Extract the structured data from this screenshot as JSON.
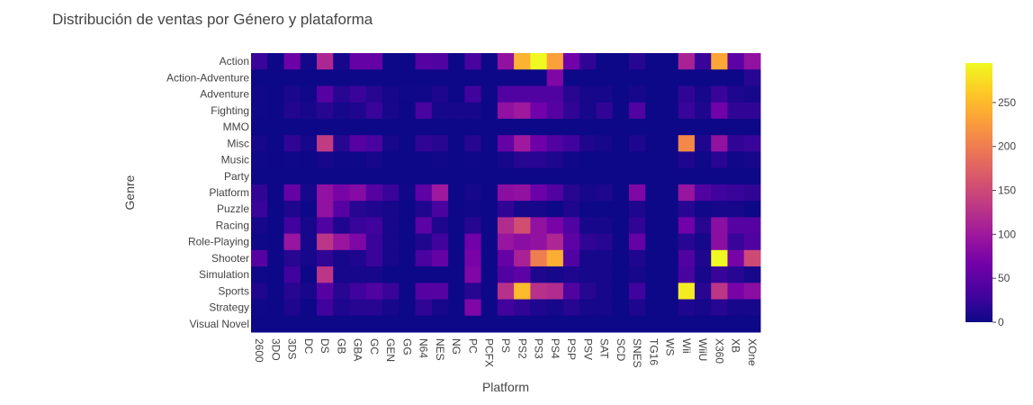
{
  "chart_data": {
    "type": "heatmap",
    "title": "Distribución de ventas por Género y plataforma",
    "xlabel": "Platform",
    "ylabel": "Genre",
    "x": [
      "2600",
      "3DO",
      "3DS",
      "DC",
      "DS",
      "GB",
      "GBA",
      "GC",
      "GEN",
      "GG",
      "N64",
      "NES",
      "NG",
      "PC",
      "PCFX",
      "PS",
      "PS2",
      "PS3",
      "PS4",
      "PSP",
      "PSV",
      "SAT",
      "SCD",
      "SNES",
      "TG16",
      "WS",
      "Wii",
      "WiiU",
      "X360",
      "XB",
      "XOne"
    ],
    "y": [
      "Action",
      "Action-Adventure",
      "Adventure",
      "Fighting",
      "MMO",
      "Misc",
      "Music",
      "Party",
      "Platform",
      "Puzzle",
      "Racing",
      "Role-Playing",
      "Shooter",
      "Simulation",
      "Sports",
      "Strategy",
      "Visual Novel"
    ],
    "z": [
      [
        25,
        0,
        60,
        3,
        115,
        5,
        55,
        55,
        0,
        0,
        45,
        40,
        0,
        35,
        0,
        90,
        245,
        295,
        230,
        65,
        20,
        0,
        0,
        15,
        0,
        0,
        110,
        25,
        235,
        50,
        90
      ],
      [
        0,
        0,
        0,
        0,
        0,
        0,
        0,
        0,
        0,
        0,
        0,
        0,
        0,
        0,
        0,
        0,
        0,
        0,
        75,
        0,
        0,
        0,
        0,
        0,
        0,
        0,
        0,
        0,
        0,
        0,
        15
      ],
      [
        2,
        0,
        8,
        2,
        45,
        15,
        25,
        15,
        5,
        1,
        2,
        10,
        0,
        30,
        0,
        40,
        40,
        40,
        40,
        15,
        5,
        5,
        0,
        5,
        0,
        0,
        20,
        5,
        25,
        10,
        5
      ],
      [
        1,
        0,
        12,
        5,
        15,
        5,
        10,
        25,
        5,
        0,
        35,
        5,
        5,
        5,
        0,
        90,
        100,
        65,
        45,
        20,
        5,
        20,
        0,
        40,
        0,
        0,
        25,
        10,
        65,
        20,
        20
      ],
      [
        0,
        0,
        0,
        0,
        0,
        0,
        0,
        0,
        0,
        0,
        0,
        0,
        0,
        0,
        0,
        0,
        0,
        0,
        0,
        0,
        0,
        0,
        0,
        0,
        0,
        0,
        0,
        0,
        0,
        0,
        0
      ],
      [
        5,
        0,
        20,
        5,
        135,
        15,
        45,
        35,
        5,
        0,
        20,
        15,
        0,
        15,
        0,
        55,
        100,
        60,
        40,
        30,
        10,
        5,
        0,
        10,
        0,
        0,
        210,
        10,
        90,
        20,
        25
      ],
      [
        1,
        0,
        1,
        0,
        5,
        1,
        1,
        5,
        0,
        0,
        0,
        2,
        0,
        1,
        0,
        5,
        15,
        15,
        10,
        2,
        0,
        0,
        0,
        0,
        0,
        0,
        10,
        1,
        15,
        2,
        5
      ],
      [
        0,
        0,
        0,
        0,
        0,
        0,
        0,
        0,
        0,
        0,
        0,
        0,
        0,
        0,
        0,
        0,
        0,
        0,
        0,
        0,
        0,
        0,
        0,
        0,
        0,
        0,
        0,
        0,
        0,
        0,
        0
      ],
      [
        20,
        0,
        55,
        5,
        90,
        70,
        80,
        45,
        25,
        1,
        50,
        100,
        0,
        5,
        0,
        85,
        90,
        60,
        40,
        15,
        5,
        10,
        0,
        75,
        0,
        0,
        95,
        40,
        30,
        25,
        20
      ],
      [
        25,
        0,
        10,
        0,
        90,
        45,
        15,
        10,
        5,
        0,
        10,
        35,
        0,
        2,
        0,
        20,
        5,
        5,
        0,
        10,
        0,
        0,
        0,
        10,
        0,
        0,
        15,
        2,
        5,
        5,
        0
      ],
      [
        5,
        0,
        30,
        5,
        40,
        10,
        25,
        30,
        5,
        0,
        50,
        10,
        0,
        15,
        0,
        120,
        155,
        90,
        70,
        40,
        5,
        5,
        0,
        20,
        0,
        0,
        65,
        15,
        85,
        45,
        45
      ],
      [
        1,
        0,
        95,
        5,
        130,
        95,
        75,
        25,
        5,
        0,
        10,
        30,
        0,
        65,
        0,
        95,
        85,
        90,
        115,
        50,
        20,
        15,
        0,
        55,
        0,
        0,
        15,
        5,
        85,
        25,
        40
      ],
      [
        45,
        0,
        15,
        5,
        20,
        5,
        10,
        25,
        5,
        0,
        35,
        55,
        0,
        70,
        0,
        55,
        110,
        200,
        240,
        40,
        5,
        5,
        0,
        10,
        0,
        0,
        40,
        10,
        295,
        70,
        150
      ],
      [
        1,
        0,
        30,
        0,
        130,
        5,
        5,
        5,
        0,
        0,
        0,
        0,
        0,
        75,
        0,
        40,
        50,
        10,
        5,
        10,
        5,
        5,
        0,
        5,
        0,
        0,
        35,
        5,
        25,
        15,
        5
      ],
      [
        10,
        0,
        15,
        5,
        45,
        15,
        30,
        40,
        25,
        0,
        45,
        45,
        0,
        15,
        0,
        125,
        250,
        125,
        120,
        40,
        15,
        5,
        0,
        30,
        0,
        0,
        285,
        15,
        130,
        70,
        85
      ],
      [
        1,
        0,
        10,
        0,
        30,
        10,
        15,
        15,
        5,
        0,
        20,
        5,
        0,
        75,
        0,
        30,
        20,
        10,
        5,
        15,
        5,
        5,
        0,
        10,
        0,
        0,
        10,
        5,
        15,
        5,
        5
      ],
      [
        0,
        0,
        0,
        0,
        0,
        0,
        0,
        0,
        0,
        0,
        0,
        0,
        0,
        0,
        0,
        0,
        0,
        0,
        0,
        0,
        0,
        0,
        0,
        0,
        0,
        0,
        0,
        0,
        0,
        0,
        0
      ]
    ],
    "zrange": [
      0,
      295
    ],
    "colorbar_ticks": [
      0,
      50,
      100,
      150,
      200,
      250
    ],
    "colorscale": "plasma",
    "colors": [
      "#0d0887",
      "#46039f",
      "#7201a8",
      "#9c179e",
      "#bd3786",
      "#d8576b",
      "#ed7953",
      "#fb9f3a",
      "#fdca26",
      "#f0f921"
    ]
  }
}
